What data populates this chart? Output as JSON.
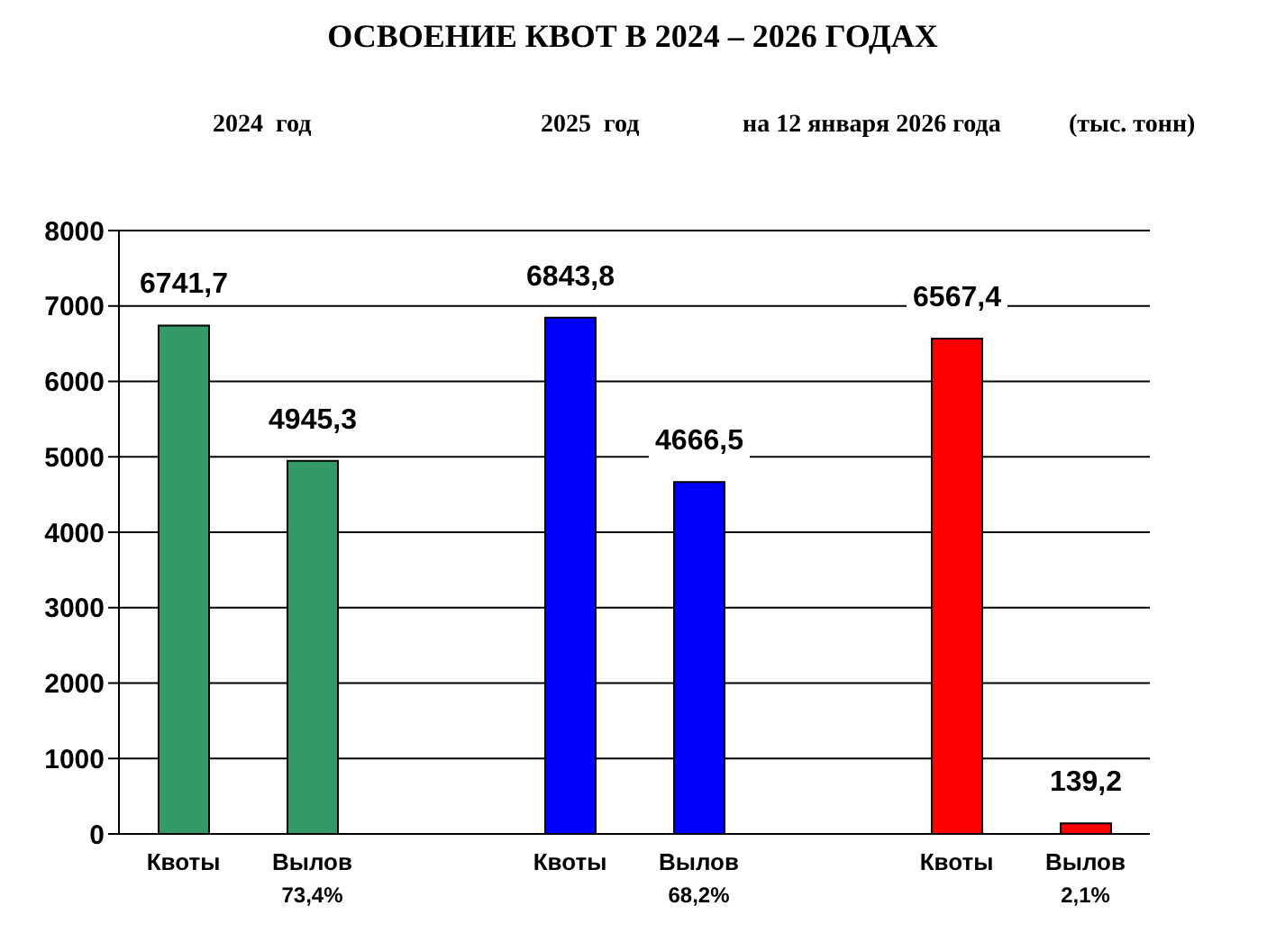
{
  "chart_data": {
    "type": "bar",
    "title": "ОСВОЕНИЕ КВОТ  В 2024  –  2026  ГОДАХ",
    "annotations": [
      "2024  год",
      "2025  год",
      "на 12 января 2026 года",
      "(тыс. тонн)"
    ],
    "categories": [
      "Квоты",
      "Вылов\n73,4%",
      null,
      "Квоты",
      "Вылов\n68,2%",
      null,
      "Квоты",
      "Вылов\n2,1%"
    ],
    "values": [
      6741.7,
      4945.3,
      null,
      6843.8,
      4666.5,
      null,
      6567.4,
      139.2
    ],
    "colors": [
      "#339966",
      "#339966",
      "#339966",
      "#0000ff",
      "#0000ff",
      "#0000ff",
      "#ff0000",
      "#ff0000"
    ],
    "ylim": [
      0,
      8000
    ],
    "yticks": [
      0,
      1000,
      2000,
      3000,
      4000,
      5000,
      6000,
      7000,
      8000
    ],
    "value_labels": [
      "6741,7",
      "4945,3",
      null,
      "6843,8",
      "4666,5",
      null,
      "6567,4",
      "139,2"
    ],
    "grid": "y"
  }
}
